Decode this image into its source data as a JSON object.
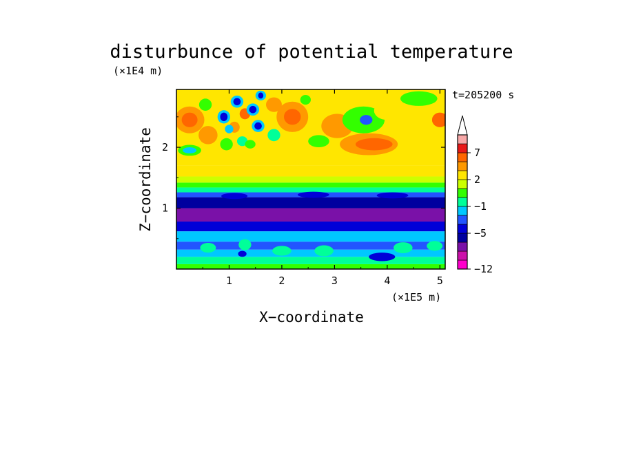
{
  "chart_data": {
    "type": "heatmap",
    "title": "disturbunce of potential temperature",
    "time_label": "t=205200 s",
    "xlabel": "X−coordinate",
    "ylabel": "Z−coordinate",
    "x_unit": "(×1E5 m)",
    "y_unit": "(×1E4 m)",
    "xlim": [
      0.0,
      5.1
    ],
    "ylim": [
      0.0,
      2.95
    ],
    "x_ticks": [
      1,
      2,
      3,
      4,
      5
    ],
    "y_ticks": [
      1,
      2
    ],
    "x_tick_labels": [
      "1",
      "2",
      "3",
      "4",
      "5"
    ],
    "y_tick_labels": [
      "1",
      "2"
    ],
    "colorbar": {
      "levels": [
        -12,
        -11,
        -9,
        -7,
        -5,
        -4,
        -2,
        -1,
        0,
        1,
        2,
        3,
        5,
        7,
        9,
        11
      ],
      "labels": [
        {
          "level": -12,
          "text": "−12"
        },
        {
          "level": -5,
          "text": "−5"
        },
        {
          "level": -1,
          "text": "−1"
        },
        {
          "level": 2,
          "text": "2"
        },
        {
          "level": 7,
          "text": "7"
        }
      ],
      "colors": [
        "#ff00cc",
        "#cc11aa",
        "#7a11a8",
        "#00009f",
        "#0000d8",
        "#2255ff",
        "#00c8ff",
        "#00ff99",
        "#33ff00",
        "#ccff00",
        "#ffe600",
        "#ff9900",
        "#ff6600",
        "#e81818",
        "#f7a8a8",
        "#ffffff"
      ],
      "extend": "max"
    },
    "bands": [
      {
        "z": [
          0.0,
          0.08
        ],
        "level": 0
      },
      {
        "z": [
          0.08,
          0.2
        ],
        "level": -1
      },
      {
        "z": [
          0.2,
          0.32
        ],
        "level": -2
      },
      {
        "z": [
          0.32,
          0.45
        ],
        "level": -4
      },
      {
        "z": [
          0.45,
          0.62
        ],
        "level": -2
      },
      {
        "z": [
          0.62,
          0.78
        ],
        "level": -5
      },
      {
        "z": [
          0.78,
          1.0
        ],
        "level": -9
      },
      {
        "z": [
          1.0,
          1.18
        ],
        "level": -7
      },
      {
        "z": [
          1.18,
          1.26
        ],
        "level": -4
      },
      {
        "z": [
          1.26,
          1.34
        ],
        "level": -1
      },
      {
        "z": [
          1.34,
          1.42
        ],
        "level": 0
      },
      {
        "z": [
          1.42,
          1.52
        ],
        "level": 1
      },
      {
        "z": [
          1.52,
          1.7
        ],
        "level": 2
      },
      {
        "z": [
          1.7,
          2.95
        ],
        "level": 2
      }
    ],
    "features": [
      {
        "x": 0.25,
        "z": 2.45,
        "rx": 0.28,
        "rz": 0.22,
        "level": 3
      },
      {
        "x": 0.25,
        "z": 2.45,
        "rx": 0.15,
        "rz": 0.12,
        "level": 5
      },
      {
        "x": 0.25,
        "z": 1.95,
        "rx": 0.22,
        "rz": 0.09,
        "level": 0
      },
      {
        "x": 0.25,
        "z": 1.95,
        "rx": 0.13,
        "rz": 0.05,
        "level": -2
      },
      {
        "x": 0.55,
        "z": 2.7,
        "rx": 0.12,
        "rz": 0.1,
        "level": 0
      },
      {
        "x": 0.6,
        "z": 2.2,
        "rx": 0.18,
        "rz": 0.15,
        "level": 3
      },
      {
        "x": 0.9,
        "z": 2.5,
        "rx": 0.12,
        "rz": 0.11,
        "level": -2
      },
      {
        "x": 0.9,
        "z": 2.5,
        "rx": 0.07,
        "rz": 0.07,
        "level": -5
      },
      {
        "x": 0.95,
        "z": 2.05,
        "rx": 0.12,
        "rz": 0.1,
        "level": 0
      },
      {
        "x": 1.15,
        "z": 2.75,
        "rx": 0.12,
        "rz": 0.1,
        "level": -2
      },
      {
        "x": 1.15,
        "z": 2.75,
        "rx": 0.07,
        "rz": 0.06,
        "level": -5
      },
      {
        "x": 1.1,
        "z": 2.33,
        "rx": 0.1,
        "rz": 0.09,
        "level": 3
      },
      {
        "x": 1.0,
        "z": 2.3,
        "rx": 0.08,
        "rz": 0.07,
        "level": -2
      },
      {
        "x": 1.25,
        "z": 2.1,
        "rx": 0.1,
        "rz": 0.08,
        "level": -1
      },
      {
        "x": 1.3,
        "z": 2.55,
        "rx": 0.1,
        "rz": 0.09,
        "level": 5
      },
      {
        "x": 1.45,
        "z": 2.62,
        "rx": 0.12,
        "rz": 0.1,
        "level": -2
      },
      {
        "x": 1.45,
        "z": 2.62,
        "rx": 0.07,
        "rz": 0.06,
        "level": -5
      },
      {
        "x": 1.55,
        "z": 2.35,
        "rx": 0.12,
        "rz": 0.1,
        "level": -2
      },
      {
        "x": 1.55,
        "z": 2.35,
        "rx": 0.07,
        "rz": 0.06,
        "level": -5
      },
      {
        "x": 1.6,
        "z": 2.85,
        "rx": 0.1,
        "rz": 0.08,
        "level": -2
      },
      {
        "x": 1.6,
        "z": 2.85,
        "rx": 0.05,
        "rz": 0.05,
        "level": -5
      },
      {
        "x": 1.4,
        "z": 2.05,
        "rx": 0.1,
        "rz": 0.07,
        "level": 0
      },
      {
        "x": 1.85,
        "z": 2.7,
        "rx": 0.15,
        "rz": 0.12,
        "level": 3
      },
      {
        "x": 1.85,
        "z": 2.2,
        "rx": 0.12,
        "rz": 0.1,
        "level": -1
      },
      {
        "x": 2.2,
        "z": 2.5,
        "rx": 0.3,
        "rz": 0.25,
        "level": 3
      },
      {
        "x": 2.2,
        "z": 2.5,
        "rx": 0.16,
        "rz": 0.13,
        "level": 5
      },
      {
        "x": 2.45,
        "z": 2.78,
        "rx": 0.1,
        "rz": 0.08,
        "level": 0
      },
      {
        "x": 2.7,
        "z": 2.1,
        "rx": 0.2,
        "rz": 0.1,
        "level": 0
      },
      {
        "x": 3.05,
        "z": 2.35,
        "rx": 0.3,
        "rz": 0.2,
        "level": 3
      },
      {
        "x": 3.55,
        "z": 2.45,
        "rx": 0.4,
        "rz": 0.22,
        "level": 0
      },
      {
        "x": 3.6,
        "z": 2.45,
        "rx": 0.12,
        "rz": 0.08,
        "level": -4
      },
      {
        "x": 3.65,
        "z": 2.05,
        "rx": 0.55,
        "rz": 0.18,
        "level": 3
      },
      {
        "x": 3.75,
        "z": 2.05,
        "rx": 0.35,
        "rz": 0.1,
        "level": 5
      },
      {
        "x": 4.0,
        "z": 2.6,
        "rx": 0.25,
        "rz": 0.15,
        "level": 2
      },
      {
        "x": 4.6,
        "z": 2.8,
        "rx": 0.35,
        "rz": 0.12,
        "level": 0
      },
      {
        "x": 5.0,
        "z": 2.45,
        "rx": 0.15,
        "rz": 0.12,
        "level": 5
      },
      {
        "x": 4.6,
        "z": 2.45,
        "rx": 0.25,
        "rz": 0.15,
        "level": 2
      },
      {
        "x": 1.1,
        "z": 1.2,
        "rx": 0.25,
        "rz": 0.05,
        "level": -5
      },
      {
        "x": 2.6,
        "z": 1.22,
        "rx": 0.3,
        "rz": 0.05,
        "level": -5
      },
      {
        "x": 4.1,
        "z": 1.21,
        "rx": 0.3,
        "rz": 0.05,
        "level": -5
      },
      {
        "x": 0.6,
        "z": 0.35,
        "rx": 0.15,
        "rz": 0.08,
        "level": -1
      },
      {
        "x": 1.3,
        "z": 0.4,
        "rx": 0.12,
        "rz": 0.09,
        "level": -1
      },
      {
        "x": 1.25,
        "z": 0.25,
        "rx": 0.08,
        "rz": 0.05,
        "level": -5
      },
      {
        "x": 2.0,
        "z": 0.3,
        "rx": 0.18,
        "rz": 0.08,
        "level": -1
      },
      {
        "x": 2.8,
        "z": 0.3,
        "rx": 0.18,
        "rz": 0.09,
        "level": -1
      },
      {
        "x": 3.9,
        "z": 0.2,
        "rx": 0.25,
        "rz": 0.07,
        "level": -5
      },
      {
        "x": 4.3,
        "z": 0.35,
        "rx": 0.18,
        "rz": 0.09,
        "level": -1
      },
      {
        "x": 4.9,
        "z": 0.38,
        "rx": 0.15,
        "rz": 0.08,
        "level": -1
      }
    ]
  }
}
